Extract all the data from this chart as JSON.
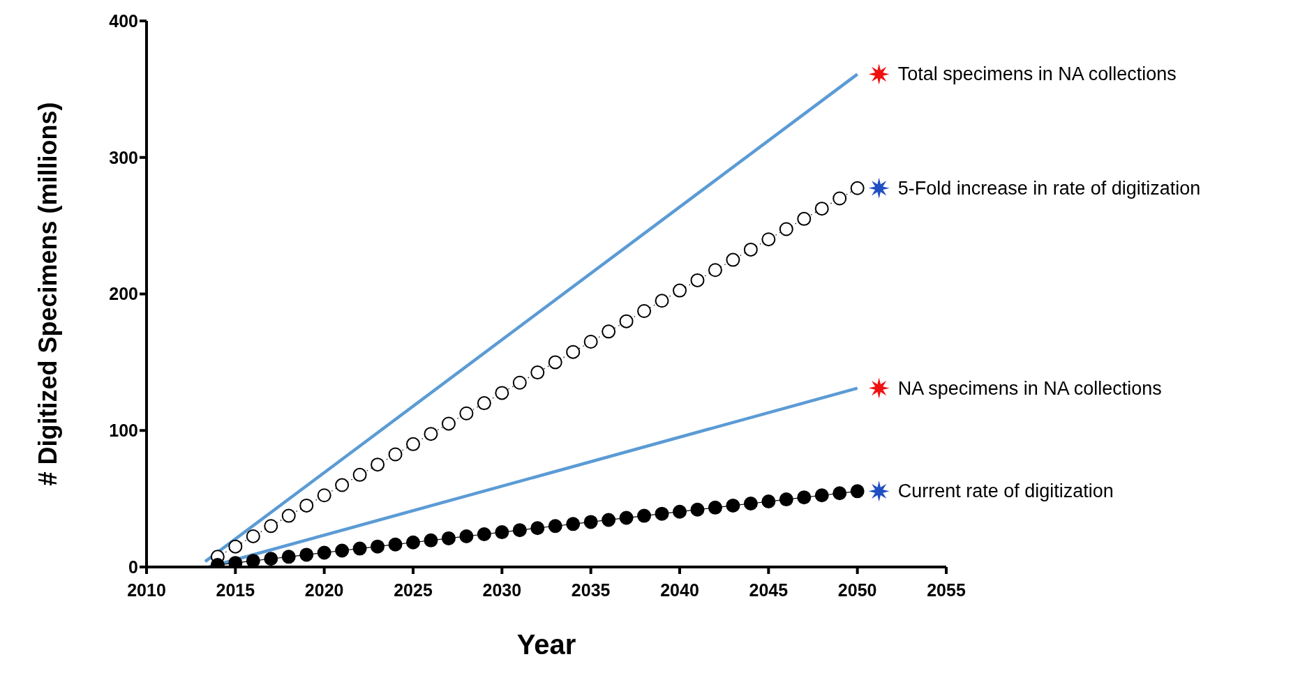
{
  "chart_data": {
    "type": "line",
    "xlabel": "Year",
    "ylabel": "# Digitized Specimens (millions)",
    "xlim": [
      2010,
      2055
    ],
    "xticks": [
      2010,
      2015,
      2020,
      2025,
      2030,
      2035,
      2040,
      2045,
      2050,
      2055
    ],
    "ylim": [
      0,
      400
    ],
    "yticks": [
      0,
      100,
      200,
      300,
      400
    ],
    "grid": false,
    "legend": false,
    "marker": "circle",
    "series": [
      {
        "name": "Total specimens in NA collections",
        "color": "#5b9bd5",
        "marker": "none",
        "x": [
          2013.3,
          2050
        ],
        "values": [
          4,
          361
        ]
      },
      {
        "name": "5-Fold increase in rate of digitization",
        "color": "#000000",
        "line_style": "dotted",
        "x": [
          2014,
          2015,
          2016,
          2017,
          2018,
          2019,
          2020,
          2021,
          2022,
          2023,
          2024,
          2025,
          2026,
          2027,
          2028,
          2029,
          2030,
          2031,
          2032,
          2033,
          2034,
          2035,
          2036,
          2037,
          2038,
          2039,
          2040,
          2041,
          2042,
          2043,
          2044,
          2045,
          2046,
          2047,
          2048,
          2049,
          2050
        ],
        "values": [
          7.5,
          15,
          22.5,
          30,
          37.5,
          45,
          52.5,
          60,
          67.5,
          75,
          82.5,
          90,
          97.5,
          105,
          112.5,
          120,
          127.5,
          135,
          142.5,
          150,
          157.5,
          165,
          172.5,
          180,
          187.5,
          195,
          202.5,
          210,
          217.5,
          225,
          232.5,
          240,
          247.5,
          255,
          262.5,
          270,
          277.5
        ]
      },
      {
        "name": "NA specimens in NA collections",
        "color": "#5b9bd5",
        "marker": "none",
        "x": [
          2013.5,
          2050
        ],
        "values": [
          0,
          131
        ]
      },
      {
        "name": "Current rate of digitization",
        "color": "#000000",
        "line_style": "solid",
        "x": [
          2014,
          2015,
          2016,
          2017,
          2018,
          2019,
          2020,
          2021,
          2022,
          2023,
          2024,
          2025,
          2026,
          2027,
          2028,
          2029,
          2030,
          2031,
          2032,
          2033,
          2034,
          2035,
          2036,
          2037,
          2038,
          2039,
          2040,
          2041,
          2042,
          2043,
          2044,
          2045,
          2046,
          2047,
          2048,
          2049,
          2050
        ],
        "values": [
          1.5,
          3,
          4.5,
          6,
          7.5,
          9,
          10.5,
          12,
          13.5,
          15,
          16.5,
          18,
          19.5,
          21,
          22.5,
          24,
          25.5,
          27,
          28.5,
          30,
          31.5,
          33,
          34.5,
          36,
          37.5,
          39,
          40.5,
          42,
          43.5,
          45,
          46.5,
          48,
          49.5,
          51,
          52.5,
          54,
          55.5
        ]
      }
    ]
  }
}
